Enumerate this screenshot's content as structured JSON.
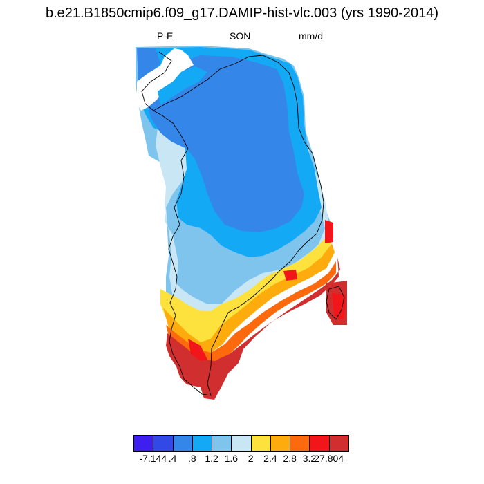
{
  "header": {
    "title": "b.e21.B1850cmip6.f09_g17.DAMIP-hist-vlc.003 (yrs 1990-2014)",
    "left_label": "P-E",
    "center_label": "SON",
    "right_label": "mm/d"
  },
  "colorbar": {
    "colors": [
      "#3f1ef0",
      "#3349e6",
      "#3486e8",
      "#14a9f5",
      "#7fc4ed",
      "#c9e6f5",
      "#fde13c",
      "#fdab0d",
      "#fd6a0d",
      "#f2161a",
      "#d12f2f"
    ],
    "labels": [
      "-7.144",
      ".4",
      ".8",
      "1.2",
      "1.6",
      "2",
      "2.4",
      "2.8",
      "3.2",
      "27.804"
    ]
  }
}
